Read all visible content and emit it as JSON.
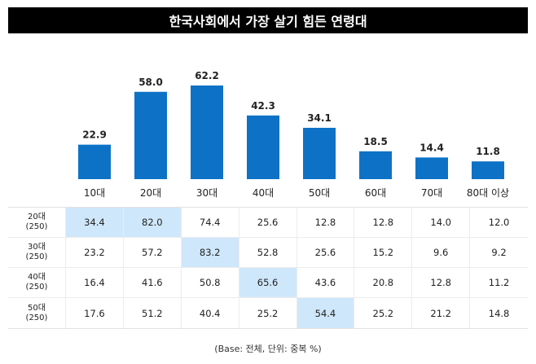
{
  "chart_data": {
    "type": "bar",
    "title": "한국사회에서 가장 살기 힘든 연령대",
    "categories": [
      "10대",
      "20대",
      "30대",
      "40대",
      "50대",
      "60대",
      "70대",
      "80대 이상"
    ],
    "values": [
      22.9,
      58.0,
      62.2,
      42.3,
      34.1,
      18.5,
      14.4,
      11.8
    ],
    "value_labels": [
      "22.9",
      "58.0",
      "62.2",
      "42.3",
      "34.1",
      "18.5",
      "14.4",
      "11.8"
    ],
    "ylim": [
      0,
      62.2
    ],
    "bar_color": "#0d72c6",
    "grid": false
  },
  "table": {
    "rows": [
      {
        "group": "20대",
        "n": "(250)",
        "values": [
          "34.4",
          "82.0",
          "74.4",
          "25.6",
          "12.8",
          "12.8",
          "14.0",
          "12.0"
        ],
        "highlight": [
          0,
          1
        ]
      },
      {
        "group": "30대",
        "n": "(250)",
        "values": [
          "23.2",
          "57.2",
          "83.2",
          "52.8",
          "25.6",
          "15.2",
          "9.6",
          "9.2"
        ],
        "highlight": [
          2
        ]
      },
      {
        "group": "40대",
        "n": "(250)",
        "values": [
          "16.4",
          "41.6",
          "50.8",
          "65.6",
          "43.6",
          "20.8",
          "12.8",
          "11.2"
        ],
        "highlight": [
          3
        ]
      },
      {
        "group": "50대",
        "n": "(250)",
        "values": [
          "17.6",
          "51.2",
          "40.4",
          "25.2",
          "54.4",
          "25.2",
          "21.2",
          "14.8"
        ],
        "highlight": [
          4
        ]
      }
    ],
    "highlight_color": "#cfe7fb"
  },
  "footnote": "(Base: 전체, 단위: 중복 %)"
}
